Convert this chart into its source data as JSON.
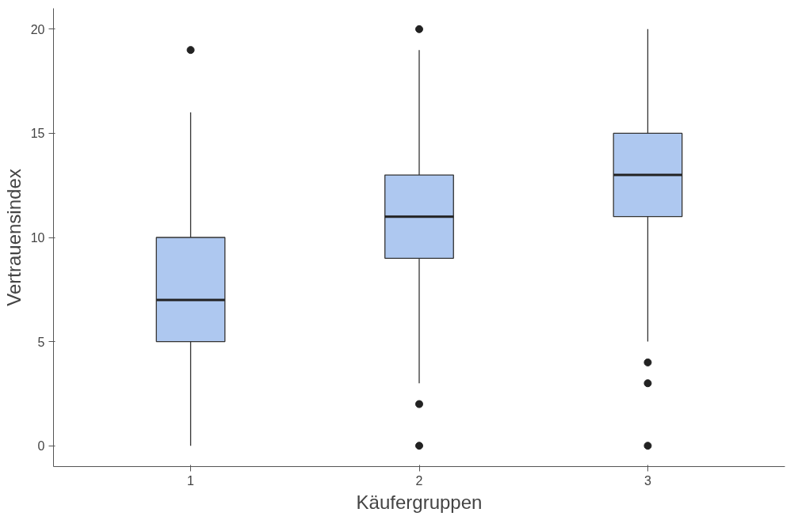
{
  "chart_data": {
    "type": "box",
    "xlabel": "Käufergruppen",
    "ylabel": "Vertrauensindex",
    "categories": [
      "1",
      "2",
      "3"
    ],
    "series": [
      {
        "color": "#aec8f0",
        "boxes": [
          {
            "low": 0,
            "q1": 5,
            "median": 7,
            "q3": 10,
            "high": 16,
            "outliers": [
              19
            ]
          },
          {
            "low": 3,
            "q1": 9,
            "median": 11,
            "q3": 13,
            "high": 19,
            "outliers": [
              20,
              2,
              0
            ]
          },
          {
            "low": 5,
            "q1": 11,
            "median": 13,
            "q3": 15,
            "high": 20,
            "outliers": [
              4,
              3,
              0
            ]
          }
        ]
      }
    ],
    "ylim": [
      -1,
      21
    ],
    "yticks": [
      0,
      5,
      10,
      15,
      20
    ],
    "grid": false
  }
}
